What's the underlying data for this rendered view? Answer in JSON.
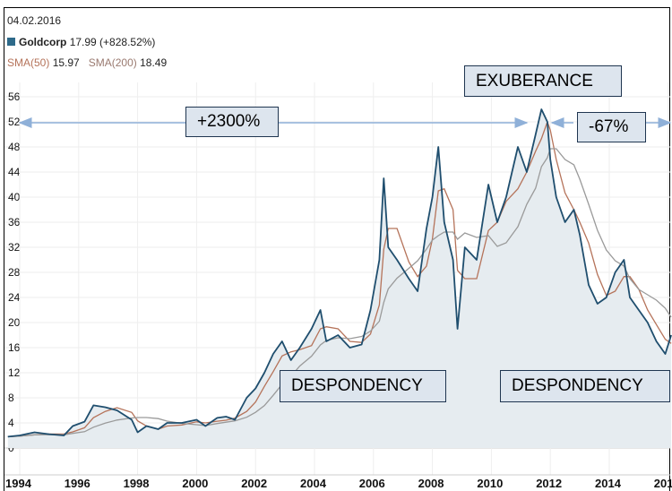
{
  "header": {
    "date": "04.02.2016",
    "series_name": "Goldcorp",
    "series_value": "17.99 (+828.52%)",
    "sma50_label": "SMA(50)",
    "sma50_value": "15.97",
    "sma200_label": "SMA(200)",
    "sma200_value": "18.49"
  },
  "annotations": {
    "gain": "+2300%",
    "peak": "EXUBERANCE",
    "loss": "-67%",
    "trough1": "DESPONDENCY",
    "trough2": "DESPONDENCY"
  },
  "colors": {
    "price": "#1f4e6e",
    "sma50": "#b5735a",
    "sma200": "#9a9a9a",
    "fill": "#e6ecf0",
    "arrow": "#8fb0d8"
  },
  "chart_data": {
    "type": "line",
    "xlim": [
      1993.6,
      2016.1
    ],
    "ylim": [
      -4,
      58
    ],
    "yticks": [
      0,
      4,
      8,
      12,
      16,
      20,
      24,
      28,
      32,
      36,
      40,
      44,
      48,
      52,
      56
    ],
    "xticks": [
      "1994",
      "1996",
      "1998",
      "2000",
      "2002",
      "2004",
      "2006",
      "2008",
      "2010",
      "2012",
      "2014",
      "201"
    ],
    "grid": true,
    "series": [
      {
        "name": "Goldcorp",
        "points": [
          [
            1993.6,
            1.8
          ],
          [
            1994,
            2.0
          ],
          [
            1994.5,
            2.5
          ],
          [
            1995,
            2.2
          ],
          [
            1995.5,
            2.0
          ],
          [
            1995.8,
            3.5
          ],
          [
            1996.2,
            4.2
          ],
          [
            1996.5,
            6.8
          ],
          [
            1996.9,
            6.5
          ],
          [
            1997.3,
            6.0
          ],
          [
            1997.8,
            4.5
          ],
          [
            1998.0,
            2.5
          ],
          [
            1998.3,
            3.5
          ],
          [
            1998.7,
            3.0
          ],
          [
            1999.0,
            4.0
          ],
          [
            1999.5,
            4.0
          ],
          [
            2000.0,
            4.5
          ],
          [
            2000.3,
            3.5
          ],
          [
            2000.7,
            4.8
          ],
          [
            2001.0,
            5.0
          ],
          [
            2001.3,
            4.5
          ],
          [
            2001.7,
            8.0
          ],
          [
            2002.0,
            9.5
          ],
          [
            2002.3,
            12
          ],
          [
            2002.6,
            15
          ],
          [
            2002.9,
            17
          ],
          [
            2003.2,
            14
          ],
          [
            2003.5,
            16
          ],
          [
            2003.9,
            19
          ],
          [
            2004.2,
            22
          ],
          [
            2004.4,
            17
          ],
          [
            2004.8,
            18
          ],
          [
            2005.2,
            16
          ],
          [
            2005.6,
            16.5
          ],
          [
            2005.9,
            22
          ],
          [
            2006.2,
            30
          ],
          [
            2006.35,
            43
          ],
          [
            2006.5,
            32
          ],
          [
            2006.8,
            30
          ],
          [
            2007.2,
            27
          ],
          [
            2007.5,
            25
          ],
          [
            2007.8,
            35
          ],
          [
            2008.0,
            40
          ],
          [
            2008.2,
            48
          ],
          [
            2008.4,
            36
          ],
          [
            2008.7,
            30
          ],
          [
            2008.85,
            19
          ],
          [
            2009.1,
            32
          ],
          [
            2009.5,
            30
          ],
          [
            2009.9,
            42
          ],
          [
            2010.2,
            36
          ],
          [
            2010.5,
            40
          ],
          [
            2010.9,
            48
          ],
          [
            2011.2,
            44
          ],
          [
            2011.5,
            50
          ],
          [
            2011.7,
            54
          ],
          [
            2011.9,
            52
          ],
          [
            2012.0,
            46
          ],
          [
            2012.2,
            40
          ],
          [
            2012.5,
            36
          ],
          [
            2012.8,
            38
          ],
          [
            2013.0,
            34
          ],
          [
            2013.3,
            26
          ],
          [
            2013.6,
            23
          ],
          [
            2013.9,
            24
          ],
          [
            2014.2,
            28
          ],
          [
            2014.5,
            30
          ],
          [
            2014.7,
            24
          ],
          [
            2015.0,
            22
          ],
          [
            2015.3,
            20
          ],
          [
            2015.6,
            17
          ],
          [
            2015.9,
            15
          ],
          [
            2016.1,
            18
          ]
        ]
      }
    ]
  }
}
